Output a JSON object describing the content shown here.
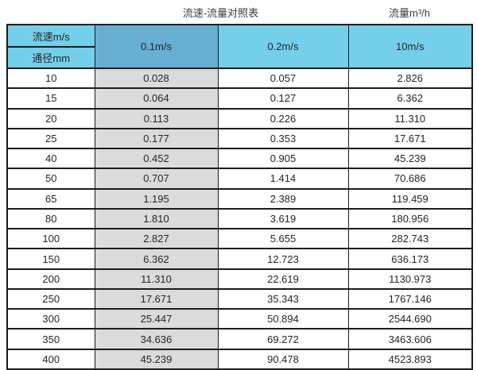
{
  "page_title": {
    "left": "流速-流量对照表",
    "right": "流量m³/h"
  },
  "chart_data": {
    "type": "table",
    "title": "流速-流量对照表",
    "flow_unit_label": "流量m³/h",
    "corner_top": "流速m/s",
    "corner_bottom": "通径mm",
    "columns": [
      "0.1m/s",
      "0.2m/s",
      "10m/s"
    ],
    "rows": [
      {
        "diameter": "10",
        "values": [
          "0.028",
          "0.057",
          "2.826"
        ]
      },
      {
        "diameter": "15",
        "values": [
          "0.064",
          "0.127",
          "6.362"
        ]
      },
      {
        "diameter": "20",
        "values": [
          "0.113",
          "0.226",
          "11.310"
        ]
      },
      {
        "diameter": "25",
        "values": [
          "0.177",
          "0.353",
          "17.671"
        ]
      },
      {
        "diameter": "40",
        "values": [
          "0.452",
          "0.905",
          "45.239"
        ]
      },
      {
        "diameter": "50",
        "values": [
          "0.707",
          "1.414",
          "70.686"
        ]
      },
      {
        "diameter": "65",
        "values": [
          "1.195",
          "2.389",
          "119.459"
        ]
      },
      {
        "diameter": "80",
        "values": [
          "1.810",
          "3.619",
          "180.956"
        ]
      },
      {
        "diameter": "100",
        "values": [
          "2.827",
          "5.655",
          "282.743"
        ]
      },
      {
        "diameter": "150",
        "values": [
          "6.362",
          "12.723",
          "636.173"
        ]
      },
      {
        "diameter": "200",
        "values": [
          "11.310",
          "22.619",
          "1130.973"
        ]
      },
      {
        "diameter": "250",
        "values": [
          "17.671",
          "35.343",
          "1767.146"
        ]
      },
      {
        "diameter": "300",
        "values": [
          "25.447",
          "50.894",
          "2544.690"
        ]
      },
      {
        "diameter": "350",
        "values": [
          "34.636",
          "69.272",
          "3463.606"
        ]
      },
      {
        "diameter": "400",
        "values": [
          "45.239",
          "90.478",
          "4523.893"
        ]
      }
    ]
  },
  "colors": {
    "header_light_blue": "#74cfea",
    "header_dark_blue": "#66aed2",
    "shaded_column_gray": "#dbdbdb",
    "border": "#1c1c1c",
    "text": "#262626"
  }
}
